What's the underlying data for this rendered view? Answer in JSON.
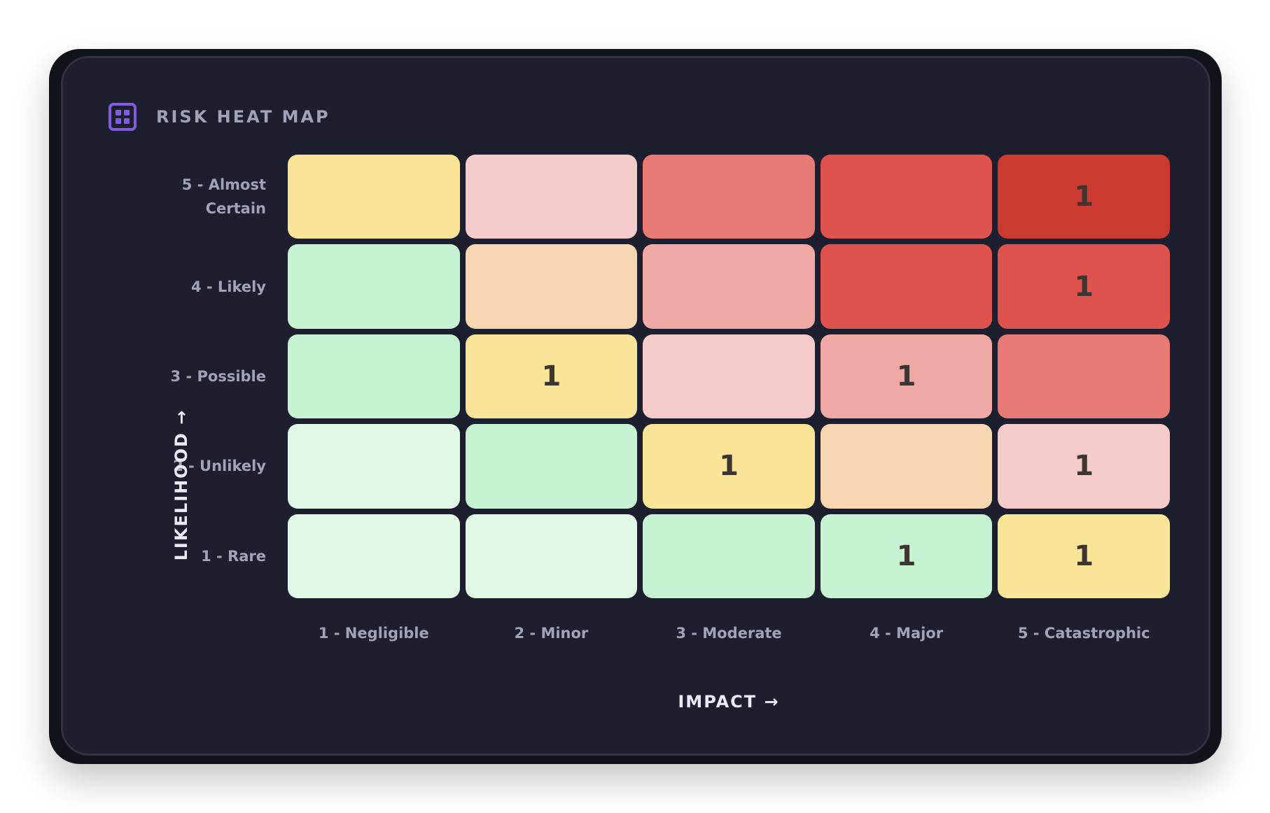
{
  "header": {
    "icon": "grid-icon",
    "title": "RISK HEAT MAP"
  },
  "chart_data": {
    "type": "heatmap",
    "title": "RISK HEAT MAP",
    "xlabel": "IMPACT →",
    "ylabel": "LIKELIHOOD →",
    "x_categories": [
      "1 - Negligible",
      "2 - Minor",
      "3 - Moderate",
      "4 - Major",
      "5 - Catastrophic"
    ],
    "y_categories": [
      "5 - Almost Certain",
      "4 - Likely",
      "3 - Possible",
      "2 - Unlikely",
      "1 - Rare"
    ],
    "values": [
      [
        null,
        null,
        null,
        null,
        1
      ],
      [
        null,
        null,
        null,
        null,
        1
      ],
      [
        null,
        1,
        null,
        1,
        null
      ],
      [
        null,
        null,
        1,
        null,
        1
      ],
      [
        null,
        null,
        null,
        1,
        1
      ]
    ],
    "cell_colors": [
      [
        "#f9e597",
        "#f5cbcb",
        "#e77a75",
        "#df534e",
        "#cb3a31"
      ],
      [
        "#c7f3d3",
        "#f7d7b1",
        "#f0a8a6",
        "#df534e",
        "#df534e"
      ],
      [
        "#c7f3d3",
        "#f9e597",
        "#f5cbcb",
        "#f0a8a6",
        "#e77a75"
      ],
      [
        "#e2f8e7",
        "#c7f3d3",
        "#f9e597",
        "#f7d7b1",
        "#f5cbcb"
      ],
      [
        "#e2f8e7",
        "#e2f8e7",
        "#c7f3d3",
        "#c7f3d3",
        "#f9e597"
      ]
    ]
  }
}
